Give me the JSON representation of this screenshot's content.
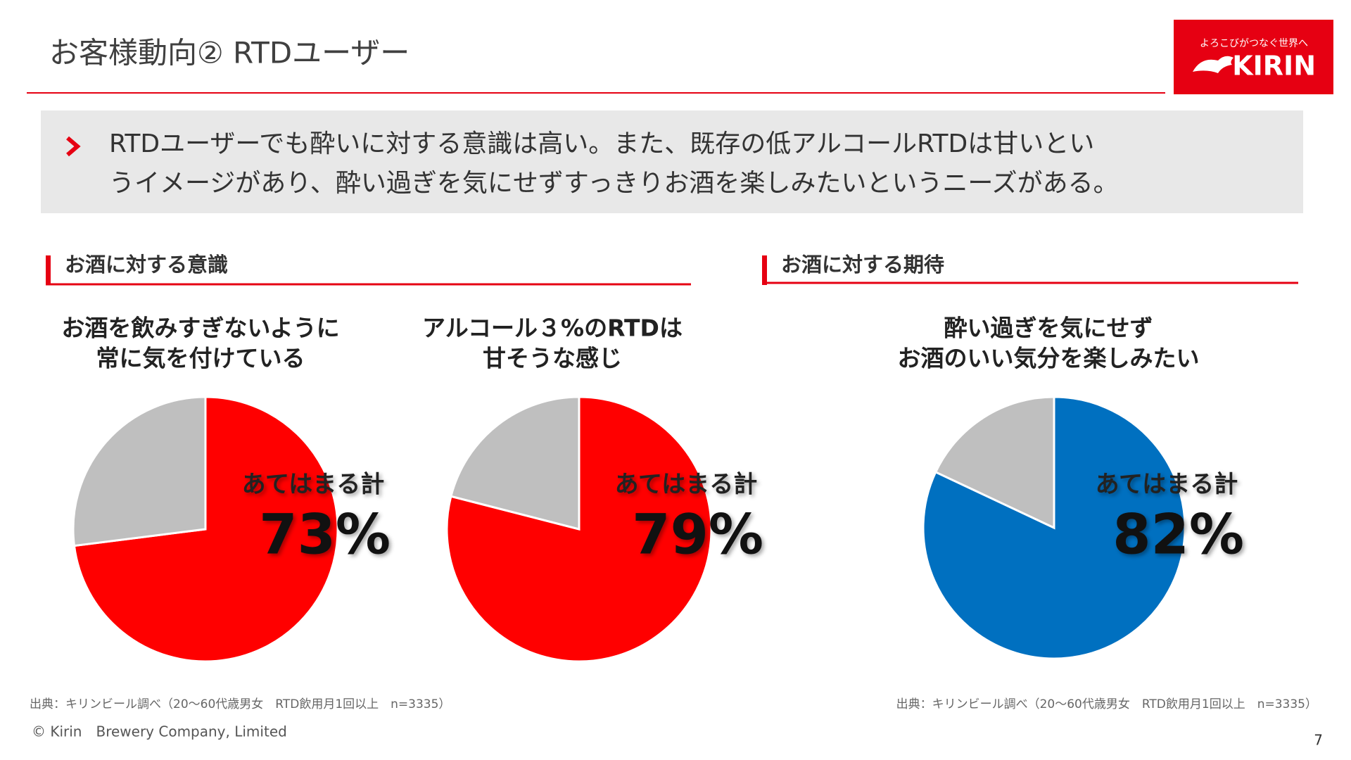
{
  "header": {
    "title": "お客様動向② RTDユーザー"
  },
  "logo": {
    "tagline": "よろこびがつなぐ世界へ",
    "brand": "KIRIN"
  },
  "summary": [
    "RTDユーザーでも酔いに対する意識は高い。また、既存の低アルコールRTDは甘いとい",
    "うイメージがあり、酔い過ぎを気にせずすっきりお酒を楽しみたいというニーズがある。"
  ],
  "sections": [
    "お酒に対する意識",
    "お酒に対する期待"
  ],
  "chart_data": [
    {
      "type": "pie",
      "title": [
        "お酒を飲みすぎないように",
        "常に気を付けている"
      ],
      "annotation": "あてはまる計",
      "values": [
        73,
        27
      ],
      "value_labels": [
        "73%",
        null
      ],
      "colors": [
        "#ff0000",
        "#bfbfbf"
      ]
    },
    {
      "type": "pie",
      "title": [
        "アルコール３%のRTDは",
        "甘そうな感じ"
      ],
      "annotation": "あてはまる計",
      "values": [
        79,
        21
      ],
      "value_labels": [
        "79%",
        null
      ],
      "colors": [
        "#ff0000",
        "#bfbfbf"
      ]
    },
    {
      "type": "pie",
      "title": [
        "酔い過ぎを気にせず",
        "お酒のいい気分を楽しみたい"
      ],
      "annotation": "あてはまる計",
      "values": [
        82,
        18
      ],
      "value_labels": [
        "82%",
        null
      ],
      "colors": [
        "#0070c0",
        "#bfbfbf"
      ]
    }
  ],
  "sources": [
    "出典：キリンビール調べ（20～60代歳男女　RTD飲用月1回以上　n=3335）",
    "出典：キリンビール調べ（20～60代歳男女　RTD飲用月1回以上　n=3335）"
  ],
  "footer": {
    "copyright": "© Kirin　Brewery Company, Limited",
    "page": "7"
  }
}
